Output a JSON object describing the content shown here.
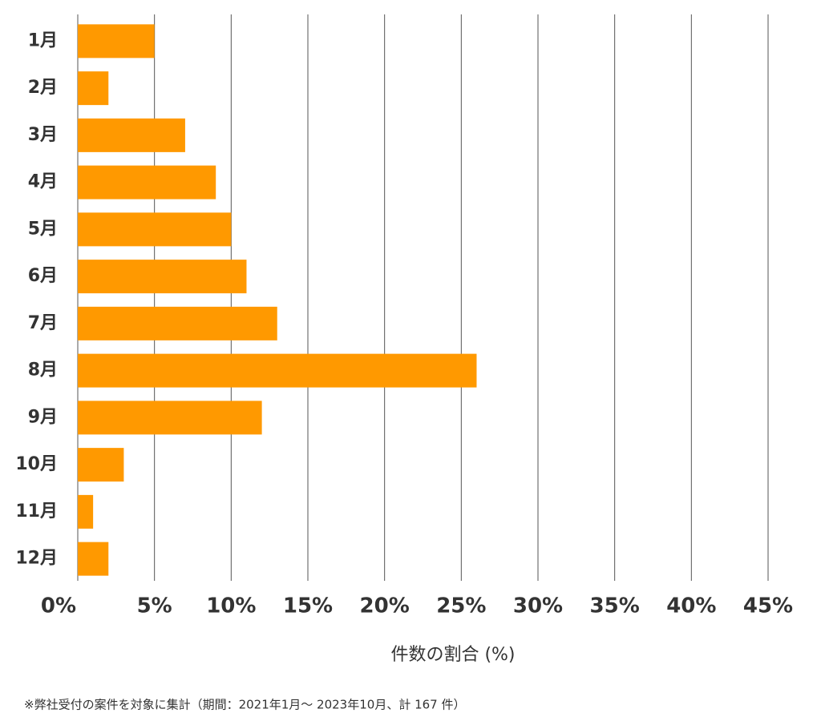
{
  "chart_data": {
    "type": "bar",
    "orientation": "horizontal",
    "categories": [
      "1月",
      "2月",
      "3月",
      "4月",
      "5月",
      "6月",
      "7月",
      "8月",
      "9月",
      "10月",
      "11月",
      "12月"
    ],
    "values": [
      5,
      2,
      7,
      9,
      10,
      11,
      13,
      26,
      12,
      3,
      1,
      2
    ],
    "color": "#ff9900",
    "xlabel": "件数の割合 (%)",
    "xlim": [
      0,
      45
    ],
    "xticks": [
      {
        "value": 0,
        "label": "0%"
      },
      {
        "value": 5,
        "label": "5%"
      },
      {
        "value": 10,
        "label": "10%"
      },
      {
        "value": 15,
        "label": "15%"
      },
      {
        "value": 20,
        "label": "20%"
      },
      {
        "value": 25,
        "label": "25%"
      },
      {
        "value": 30,
        "label": "30%"
      },
      {
        "value": 35,
        "label": "35%"
      },
      {
        "value": 40,
        "label": "40%"
      },
      {
        "value": 45,
        "label": "45%"
      }
    ],
    "grid": true,
    "note": "※弊社受付の案件を対象に集計（期間：2021年1月～ 2023年10月、計 167 件）"
  }
}
